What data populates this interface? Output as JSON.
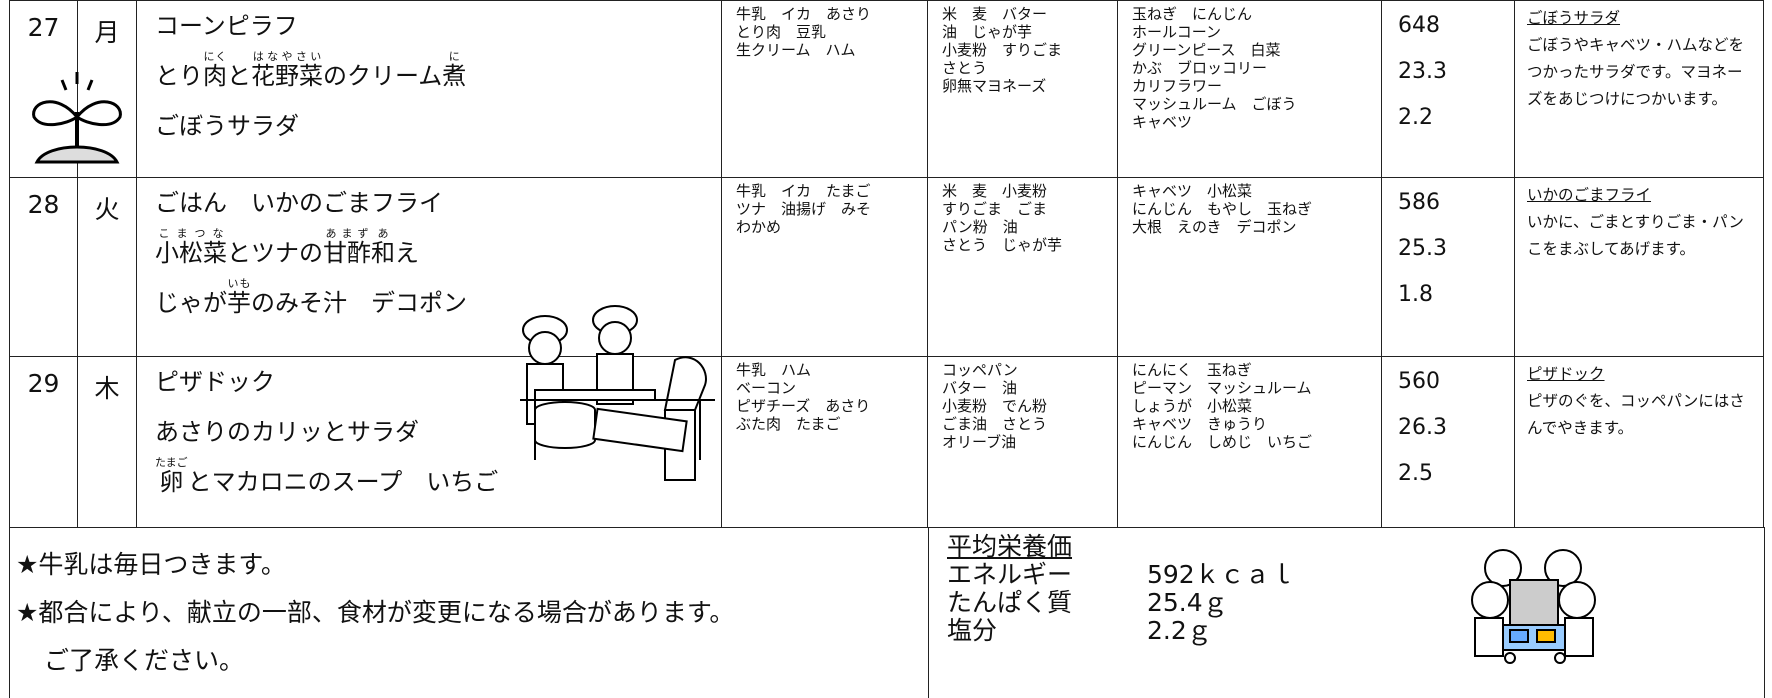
{
  "days": [
    {
      "date": "27",
      "weekday": "月",
      "menu": [
        [
          {
            "text": "コーンピラフ"
          }
        ],
        [
          {
            "text": "とり"
          },
          {
            "text": "肉",
            "ruby": "にく"
          },
          {
            "text": "と"
          },
          {
            "text": "花野菜",
            "ruby": "はなやさい"
          },
          {
            "text": "のクリーム"
          },
          {
            "text": "煮",
            "ruby": "に"
          }
        ],
        [
          {
            "text": "ごぼうサラダ"
          }
        ]
      ],
      "ingredients_red": [
        "牛乳　イカ　あさり",
        "とり肉　豆乳",
        "生クリーム　ハム"
      ],
      "ingredients_yellow": [
        "米　麦　バター",
        "油　じゃが芋",
        "小麦粉　すりごま",
        "さとう",
        "卵無マヨネーズ"
      ],
      "ingredients_green": [
        "玉ねぎ　にんじん",
        "ホールコーン",
        "グリーンピース　白菜",
        "かぶ　ブロッコリー",
        "カリフラワー",
        "マッシュルーム　ごぼう",
        "キャベツ"
      ],
      "energy": 648,
      "protein": 23.3,
      "salt": 2.2,
      "note_title": "ごぼうサラダ",
      "note": "ごぼうやキャベツ・ハムなどをつかったサラダです。マヨネーズをあじつけにつかいます。"
    },
    {
      "date": "28",
      "weekday": "火",
      "menu": [
        [
          {
            "text": "ごはん　いかのごまフライ"
          }
        ],
        [
          {
            "text": "小松菜",
            "ruby": "こまつな"
          },
          {
            "text": "とツナの"
          },
          {
            "text": "甘酢",
            "ruby": "あまず"
          },
          {
            "text": "和",
            "ruby": "あ"
          },
          {
            "text": "え"
          }
        ],
        [
          {
            "text": "じゃが"
          },
          {
            "text": "芋",
            "ruby": "いも"
          },
          {
            "text": "のみそ汁　デコポン"
          }
        ]
      ],
      "ingredients_red": [
        "牛乳　イカ　たまご",
        "ツナ　油揚げ　みそ",
        "わかめ"
      ],
      "ingredients_yellow": [
        "米　麦　小麦粉",
        "すりごま　ごま",
        "パン粉　油",
        "さとう　じゃが芋"
      ],
      "ingredients_green": [
        "キャベツ　小松菜",
        "にんじん　もやし　玉ねぎ",
        "大根　えのき　デコポン"
      ],
      "energy": 586,
      "protein": 25.3,
      "salt": 1.8,
      "note_title": "いかのごまフライ",
      "note": "いかに、ごまとすりごま・パンこをまぶしてあげます。"
    },
    {
      "date": "29",
      "weekday": "木",
      "menu": [
        [
          {
            "text": "ピザドック"
          }
        ],
        [
          {
            "text": "あさりのカリッとサラダ"
          }
        ],
        [
          {
            "text": "卵",
            "ruby": "たまご"
          },
          {
            "text": "とマカロニのスープ　いちご"
          }
        ]
      ],
      "ingredients_red": [
        "牛乳　ハム",
        "ベーコン",
        "ピザチーズ　あさり",
        "ぶた肉　たまご"
      ],
      "ingredients_yellow": [
        "コッペパン",
        "バター　油",
        "小麦粉　でん粉",
        "ごま油　さとう",
        "オリーブ油"
      ],
      "ingredients_green": [
        "にんにく　玉ねぎ",
        "ピーマン　マッシュルーム",
        "しょうが　小松菜",
        "キャベツ　きゅうり",
        "にんじん　しめじ　いちご"
      ],
      "energy": 560,
      "protein": 26.3,
      "salt": 2.5,
      "note_title": "ピザドック",
      "note": "ピザのぐを、コッペパンにはさんでやきます。"
    }
  ],
  "footer": {
    "notes": [
      "★牛乳は毎日つきます。",
      "★都合により、献立の一部、食材が変更になる場合があります。",
      "ご了承ください。"
    ],
    "average": {
      "title": "平均栄養価",
      "rows": [
        [
          "エネルギー",
          "592ｋｃａｌ"
        ],
        [
          "たんぱく質",
          "25.4ｇ"
        ],
        [
          "塩分",
          "2.2ｇ"
        ]
      ]
    }
  }
}
